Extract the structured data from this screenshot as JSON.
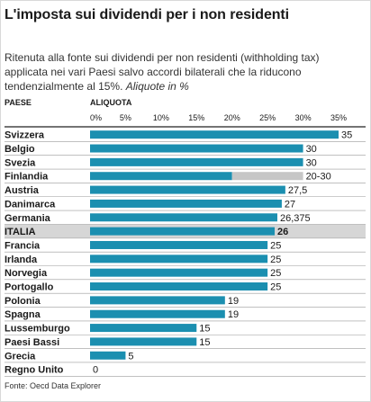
{
  "header": {
    "title": "L'imposta sui dividendi per i non residenti",
    "description": "Ritenuta alla fonte sui dividendi per non residenti (withholding tax) applicata nei vari Paesi salvo accordi bilaterali che la riducono tendenzialmente al 15%.",
    "description_italic": "Aliquote in %"
  },
  "footer": {
    "source": "Fonte: Oecd Data Explorer"
  },
  "colors": {
    "bar": "#1b8fb0",
    "range": "#c6c6c6",
    "highlight_row": "#d6d6d6",
    "rule": "#222222"
  },
  "chart_data": {
    "type": "bar",
    "orientation": "horizontal",
    "xlabel": "ALIQUOTA",
    "category_header": "PAESE",
    "xlim": [
      0,
      35
    ],
    "ticks": [
      "0%",
      "5%",
      "10%",
      "15%",
      "20%",
      "25%",
      "30%",
      "35%"
    ],
    "tick_values": [
      0,
      5,
      10,
      15,
      20,
      25,
      30,
      35
    ],
    "rows": [
      {
        "country": "Svizzera",
        "value": 35,
        "label": "35"
      },
      {
        "country": "Belgio",
        "value": 30,
        "label": "30"
      },
      {
        "country": "Svezia",
        "value": 30,
        "label": "30"
      },
      {
        "country": "Finlandia",
        "value": 20,
        "range_to": 30,
        "label": "20-30"
      },
      {
        "country": "Austria",
        "value": 27.5,
        "label": "27,5"
      },
      {
        "country": "Danimarca",
        "value": 27,
        "label": "27"
      },
      {
        "country": "Germania",
        "value": 26.375,
        "label": "26,375"
      },
      {
        "country": "ITALIA",
        "value": 26,
        "label": "26",
        "highlight": true
      },
      {
        "country": "Francia",
        "value": 25,
        "label": "25"
      },
      {
        "country": "Irlanda",
        "value": 25,
        "label": "25"
      },
      {
        "country": "Norvegia",
        "value": 25,
        "label": "25"
      },
      {
        "country": "Portogallo",
        "value": 25,
        "label": "25"
      },
      {
        "country": "Polonia",
        "value": 19,
        "label": "19"
      },
      {
        "country": "Spagna",
        "value": 19,
        "label": "19"
      },
      {
        "country": "Lussemburgo",
        "value": 15,
        "label": "15"
      },
      {
        "country": "Paesi Bassi",
        "value": 15,
        "label": "15"
      },
      {
        "country": "Grecia",
        "value": 5,
        "label": "5"
      },
      {
        "country": "Regno Unito",
        "value": 0,
        "label": "0"
      }
    ]
  }
}
